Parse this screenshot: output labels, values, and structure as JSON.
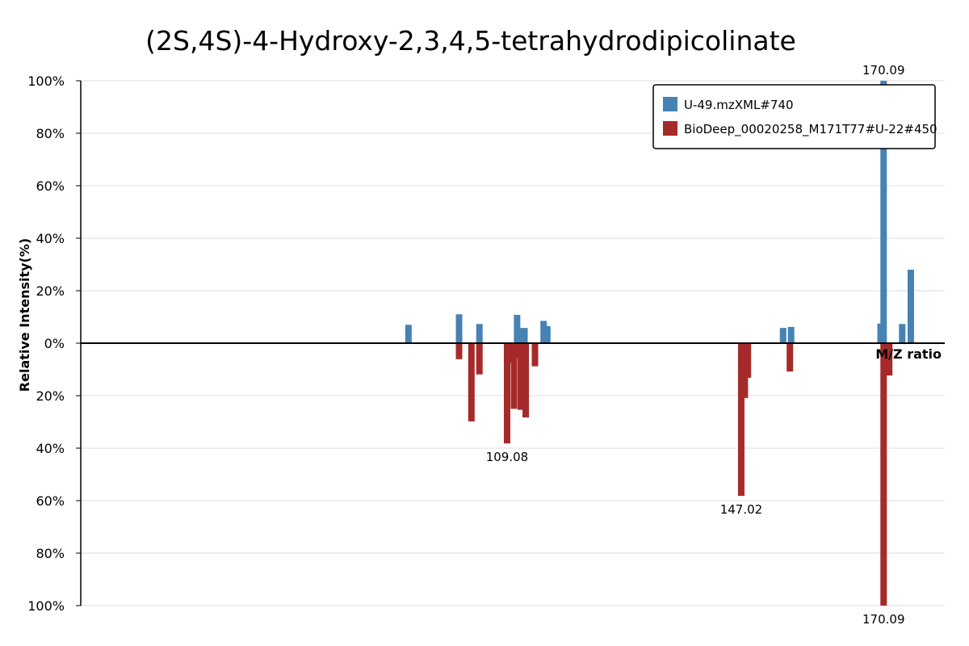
{
  "chart_data": {
    "type": "bar",
    "title": "(2S,4S)-4-Hydroxy-2,3,4,5-tetrahydrodipicolinate",
    "xlabel": "M/Z ratio",
    "ylabel": "Relative Intensity(%)",
    "ylim": [
      -100,
      100
    ],
    "yticks": [
      "100%",
      "80%",
      "60%",
      "40%",
      "20%",
      "0%",
      "20%",
      "40%",
      "60%",
      "80%",
      "100%"
    ],
    "xlim": [
      40,
      180
    ],
    "grid": true,
    "legend_position": "top-right",
    "series": [
      {
        "name": "U-49.mzXML#740",
        "color": "#4682b4",
        "direction": "up",
        "points": [
          {
            "mz": 93.1,
            "intensity": 7
          },
          {
            "mz": 101.3,
            "intensity": 11
          },
          {
            "mz": 104.6,
            "intensity": 7.3
          },
          {
            "mz": 110.7,
            "intensity": 10.8
          },
          {
            "mz": 111.3,
            "intensity": 5.8
          },
          {
            "mz": 111.9,
            "intensity": 5.8
          },
          {
            "mz": 115.0,
            "intensity": 8.5
          },
          {
            "mz": 115.6,
            "intensity": 6.5
          },
          {
            "mz": 153.8,
            "intensity": 5.8
          },
          {
            "mz": 155.1,
            "intensity": 6.2
          },
          {
            "mz": 169.6,
            "intensity": 7.5
          },
          {
            "mz": 170.09,
            "intensity": 100
          },
          {
            "mz": 173.1,
            "intensity": 7.3
          },
          {
            "mz": 174.5,
            "intensity": 28
          }
        ]
      },
      {
        "name": "BioDeep_00020258_M171T77#U-22#450",
        "color": "#a52a2a",
        "direction": "down",
        "points": [
          {
            "mz": 101.3,
            "intensity": 6.1
          },
          {
            "mz": 103.3,
            "intensity": 29.8
          },
          {
            "mz": 104.6,
            "intensity": 11.9
          },
          {
            "mz": 109.08,
            "intensity": 38.2
          },
          {
            "mz": 109.7,
            "intensity": 7.5
          },
          {
            "mz": 110.2,
            "intensity": 25
          },
          {
            "mz": 110.6,
            "intensity": 5.6
          },
          {
            "mz": 111.3,
            "intensity": 25.4
          },
          {
            "mz": 112.1,
            "intensity": 28.3
          },
          {
            "mz": 113.6,
            "intensity": 8.8
          },
          {
            "mz": 147.02,
            "intensity": 58.2
          },
          {
            "mz": 147.6,
            "intensity": 20.9
          },
          {
            "mz": 148.1,
            "intensity": 13.2
          },
          {
            "mz": 154.9,
            "intensity": 10.8
          },
          {
            "mz": 170.09,
            "intensity": 100
          },
          {
            "mz": 171.0,
            "intensity": 12.3
          }
        ]
      }
    ],
    "peak_labels": [
      {
        "text": "170.09",
        "series": 0,
        "index": 11
      },
      {
        "text": "109.08",
        "series": 1,
        "index": 3
      },
      {
        "text": "147.02",
        "series": 1,
        "index": 10
      },
      {
        "text": "170.09",
        "series": 1,
        "index": 14
      }
    ]
  }
}
